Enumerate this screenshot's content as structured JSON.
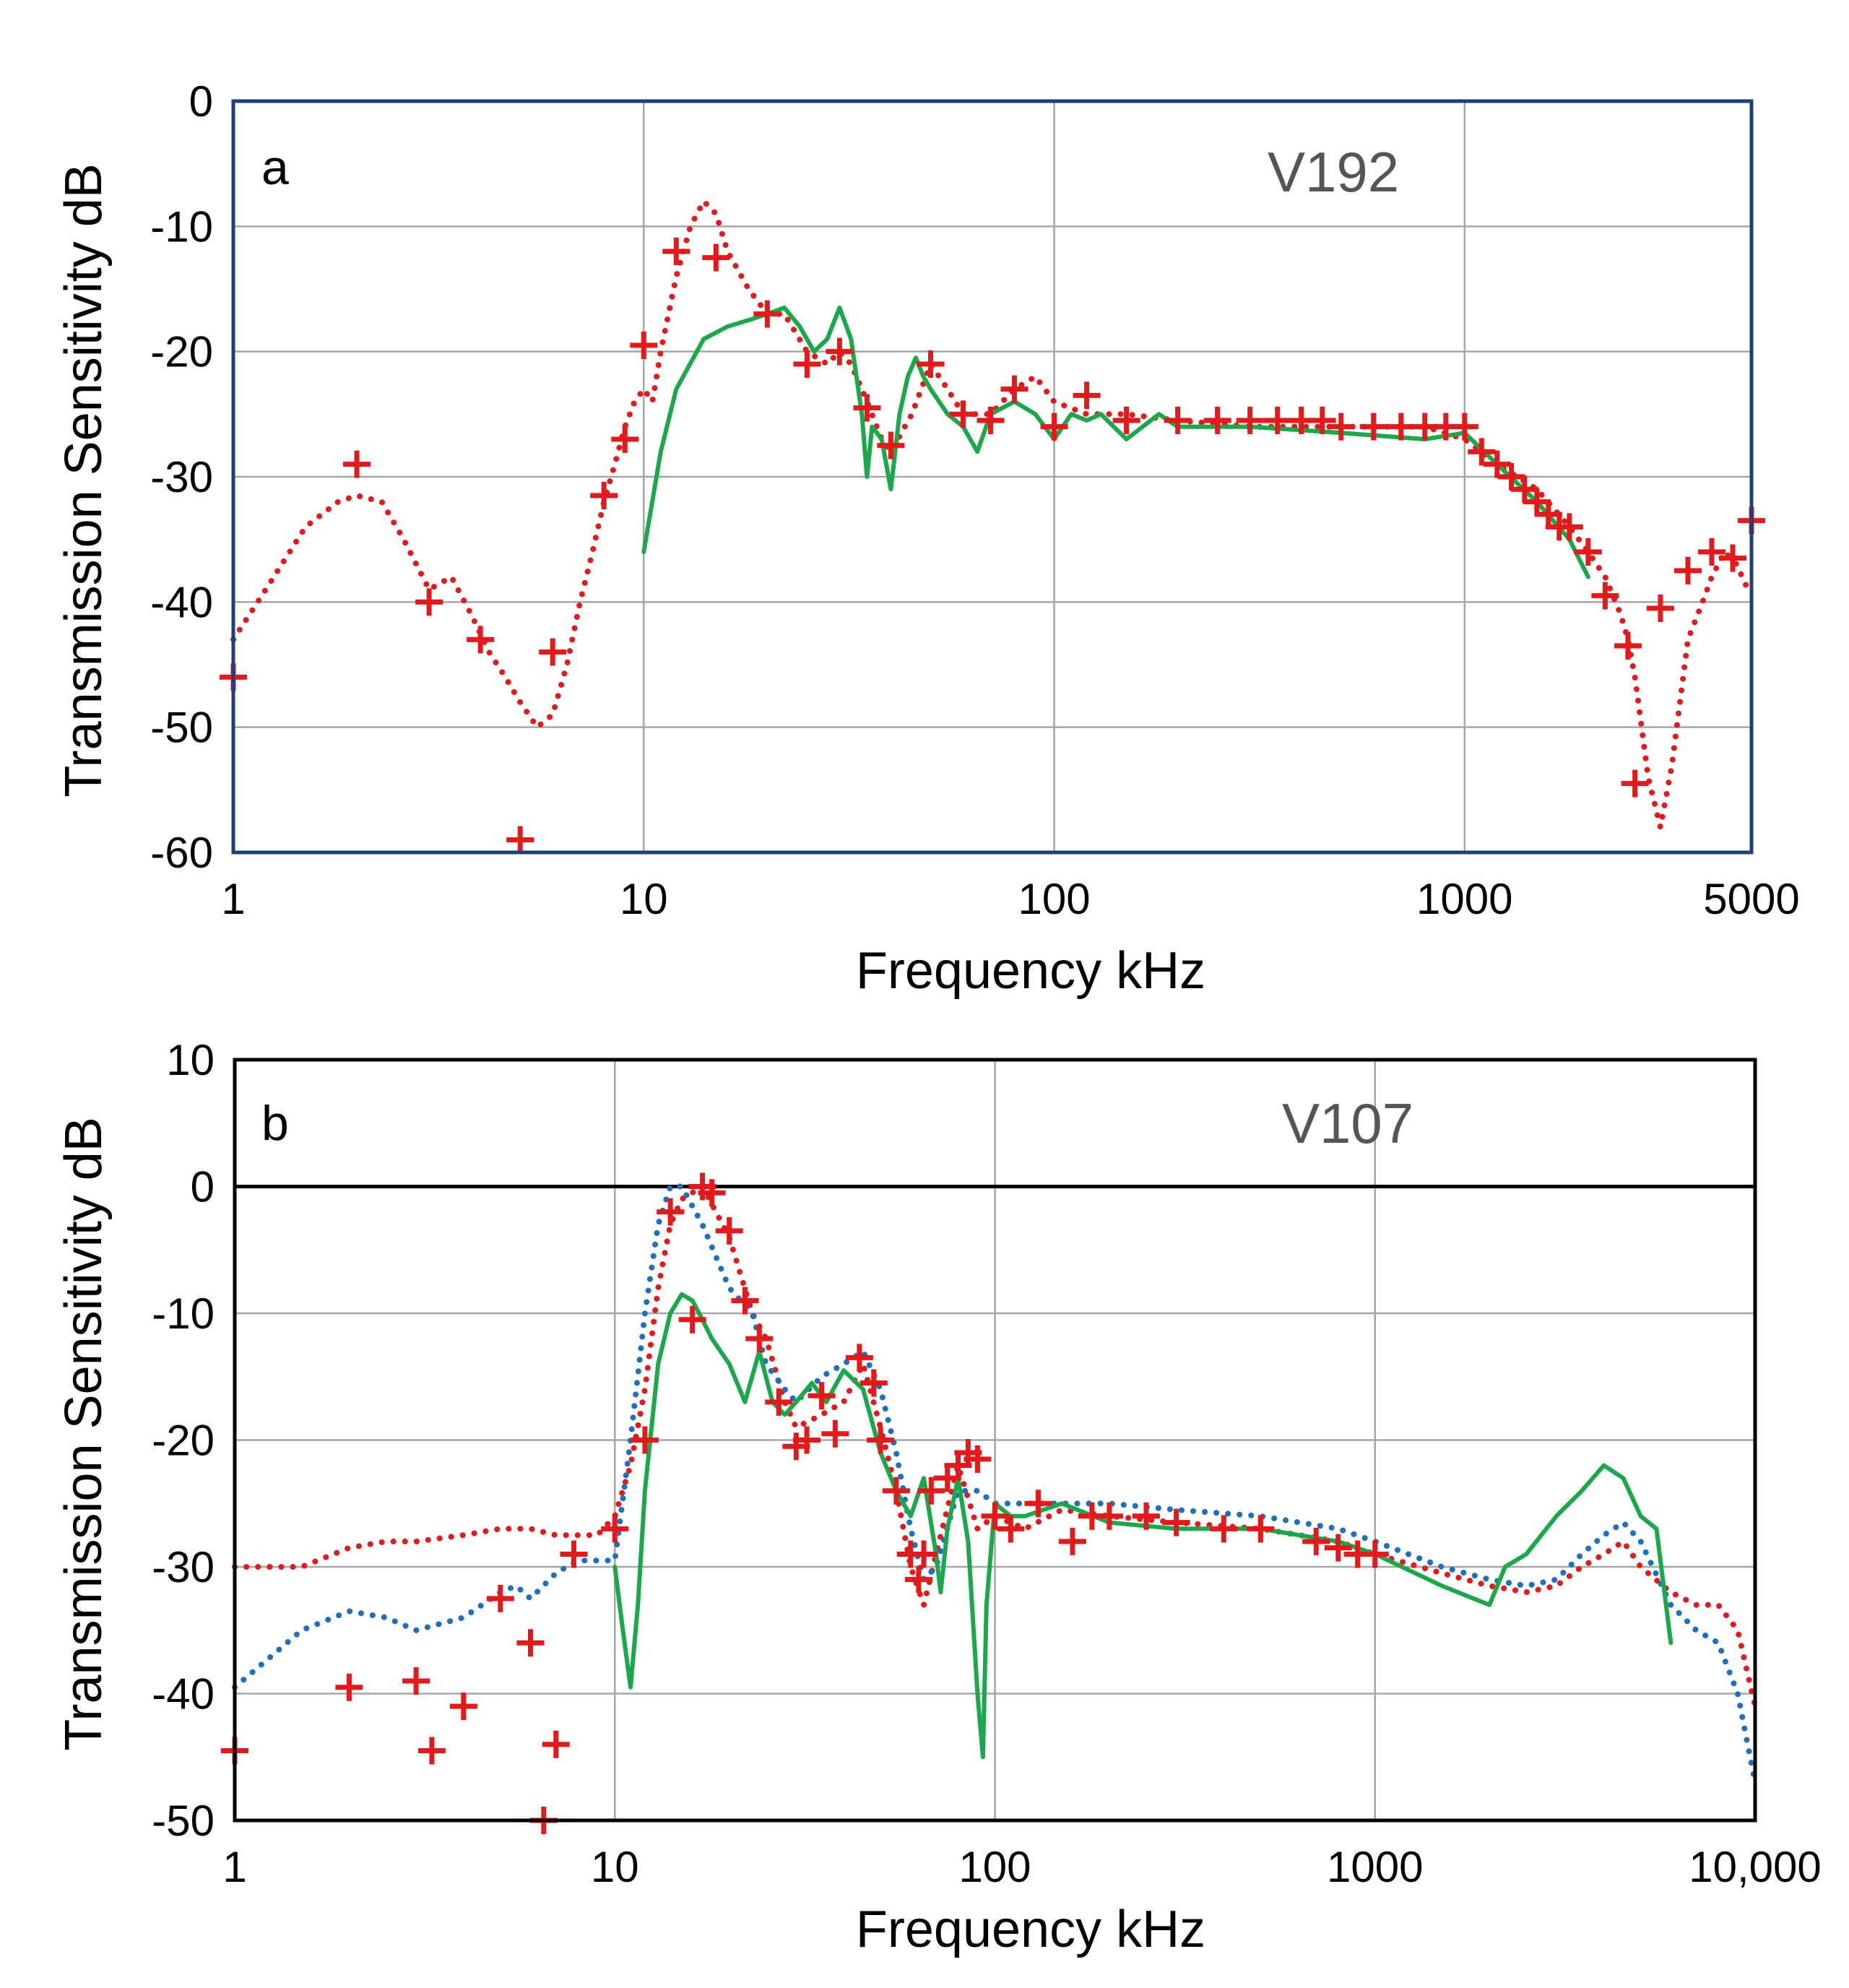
{
  "chart_data": [
    {
      "type": "line",
      "panel": "a",
      "dataset_label": "V192",
      "xlabel": "Frequency  kHz",
      "ylabel": "Transmission Sensitivity  dB",
      "xscale": "log",
      "xlim": [
        1,
        5000
      ],
      "ylim": [
        -60,
        0
      ],
      "xticks": [
        1,
        10,
        100,
        1000,
        5000
      ],
      "xtick_labels": [
        "1",
        "10",
        "100",
        "1000",
        "5000"
      ],
      "yticks": [
        0,
        -10,
        -20,
        -30,
        -40,
        -50,
        -60
      ],
      "ytick_labels": [
        "0",
        "-10",
        "-20",
        "-30",
        "-40",
        "-50",
        "-60"
      ],
      "grid": true,
      "zero_line": false,
      "frame_color": "#1f3f7a",
      "series": [
        {
          "name": "dotted",
          "style": "dotted",
          "color": "#e31a1c",
          "x": [
            1,
            1.2,
            1.5,
            1.8,
            2,
            2.3,
            2.6,
            3,
            3.4,
            3.8,
            4.2,
            4.6,
            5,
            5.5,
            6,
            6.5,
            7,
            7.5,
            8,
            8.5,
            9,
            9.5,
            10,
            10.5,
            11,
            12,
            13,
            14,
            15,
            16,
            18,
            20,
            22,
            25,
            28,
            30,
            32,
            35,
            38,
            40,
            45,
            50,
            55,
            60,
            70,
            80,
            90,
            100,
            120,
            150,
            200,
            300,
            500,
            700,
            800,
            1000,
            1200,
            1500,
            1800,
            2000,
            2200,
            2400,
            2500,
            2600,
            2700,
            2800,
            3000,
            3200,
            3500,
            3800,
            4000,
            4300,
            4600,
            4900
          ],
          "y": [
            -43,
            -39,
            -34,
            -32,
            -31.5,
            -32,
            -35,
            -39,
            -38,
            -41,
            -44,
            -46,
            -48,
            -50,
            -49,
            -45,
            -40,
            -36,
            -32,
            -29,
            -26,
            -24,
            -23,
            -24,
            -20,
            -14,
            -10,
            -8,
            -9,
            -12,
            -15,
            -17,
            -17,
            -20,
            -21,
            -20,
            -21,
            -24,
            -27,
            -28,
            -25,
            -21,
            -23,
            -25,
            -25,
            -23,
            -22,
            -24,
            -25,
            -25,
            -25.5,
            -26,
            -26,
            -26,
            -26,
            -27,
            -29,
            -31,
            -34,
            -36,
            -38,
            -41,
            -43,
            -46,
            -50,
            -54,
            -58,
            -53,
            -43,
            -40,
            -38,
            -36,
            -37,
            -39
          ]
        },
        {
          "name": "solid",
          "style": "solid",
          "color": "#1aa84a",
          "x": [
            10,
            11,
            12,
            14,
            16,
            18,
            20,
            22,
            24,
            26,
            28,
            30,
            32,
            34,
            35,
            36,
            38,
            40,
            42,
            44,
            46,
            48,
            50,
            55,
            60,
            65,
            70,
            80,
            90,
            100,
            110,
            120,
            130,
            150,
            180,
            200,
            300,
            500,
            800,
            1000,
            1200,
            1500,
            1800,
            2000
          ],
          "y": [
            -36,
            -28,
            -23,
            -19,
            -18,
            -17.5,
            -17,
            -16.5,
            -18,
            -20,
            -19,
            -16.5,
            -19,
            -25,
            -30,
            -26,
            -27,
            -31,
            -25,
            -22,
            -20.5,
            -22,
            -23,
            -25,
            -26,
            -28,
            -25,
            -24,
            -25,
            -27,
            -25,
            -25.5,
            -25,
            -27,
            -25,
            -26,
            -26,
            -26.5,
            -27,
            -26.5,
            -29,
            -32,
            -35,
            -38
          ]
        },
        {
          "name": "markers",
          "style": "plus",
          "color": "#e31a1c",
          "x": [
            1,
            2,
            3,
            4,
            5,
            6,
            8,
            9,
            10,
            12,
            15,
            20,
            25,
            30,
            35,
            40,
            50,
            60,
            70,
            80,
            100,
            120,
            150,
            200,
            250,
            300,
            350,
            400,
            450,
            500,
            600,
            700,
            800,
            900,
            1000,
            1100,
            1200,
            1300,
            1400,
            1500,
            1600,
            1700,
            1800,
            2000,
            2200,
            2500,
            2600,
            3000,
            3500,
            4000,
            4500,
            5000
          ],
          "y": [
            -46,
            -29,
            -40,
            -43,
            -59,
            -44,
            -31.5,
            -27,
            -19.5,
            -12,
            -12.5,
            -17,
            -21,
            -20,
            -24.5,
            -27.5,
            -21,
            -25,
            -25.5,
            -23,
            -26,
            -23.5,
            -25.5,
            -25.5,
            -25.5,
            -25.5,
            -25.5,
            -25.5,
            -25.5,
            -26,
            -26,
            -26,
            -26,
            -26,
            -26,
            -28,
            -29,
            -30,
            -31,
            -32,
            -33,
            -34,
            -34,
            -36,
            -39.5,
            -43.5,
            -54.5,
            -40.5,
            -37.5,
            -36,
            -36.5,
            -33.5
          ]
        }
      ]
    },
    {
      "type": "line",
      "panel": "b",
      "dataset_label": "V107",
      "xlabel": "Frequency  kHz",
      "ylabel": "Transmission Sensitivity  dB",
      "xscale": "log",
      "xlim": [
        1,
        10000
      ],
      "ylim": [
        -50,
        10
      ],
      "xticks": [
        1,
        10,
        100,
        1000,
        10000
      ],
      "xtick_labels": [
        "1",
        "10",
        "100",
        "1000",
        "10,000"
      ],
      "yticks": [
        10,
        0,
        -10,
        -20,
        -30,
        -40,
        -50
      ],
      "ytick_labels": [
        "10",
        "0",
        "-10",
        "-20",
        "-30",
        "-40",
        "-50"
      ],
      "grid": true,
      "zero_line": true,
      "frame_color": "#000000",
      "series": [
        {
          "name": "red dotted",
          "style": "dotted",
          "color": "#e31a1c",
          "x": [
            1,
            1.5,
            2,
            2.5,
            3,
            4,
            5,
            6,
            7,
            8,
            9,
            10,
            11,
            12,
            13,
            14,
            15,
            17,
            20,
            23,
            25,
            28,
            30,
            35,
            40,
            45,
            50,
            55,
            60,
            65,
            70,
            80,
            90,
            100,
            120,
            150,
            200,
            300,
            500,
            800,
            1000,
            1500,
            2000,
            2500,
            3000,
            3500,
            4000,
            4500,
            5000,
            6000,
            7000,
            8000,
            9000,
            10000
          ],
          "y": [
            -30,
            -30,
            -28.5,
            -28,
            -28,
            -27.5,
            -27,
            -27,
            -27.5,
            -27.5,
            -27.5,
            -26,
            -22,
            -16,
            -8,
            -3,
            -1,
            0,
            -4,
            -10,
            -12,
            -17,
            -19,
            -18,
            -17,
            -14,
            -19,
            -24,
            -30,
            -33,
            -29,
            -22,
            -27,
            -26,
            -27,
            -25.5,
            -26,
            -26.5,
            -27,
            -28,
            -29,
            -30.5,
            -31.5,
            -32,
            -31.5,
            -30,
            -29,
            -28,
            -30,
            -32,
            -33,
            -33,
            -35,
            -41
          ]
        },
        {
          "name": "blue dotted",
          "style": "dotted",
          "color": "#1f6fbf",
          "x": [
            1,
            1.5,
            2,
            2.5,
            3,
            4,
            5,
            5.5,
            6,
            7,
            8,
            9,
            10,
            11,
            12,
            13,
            14,
            15,
            17,
            20,
            23,
            25,
            28,
            30,
            35,
            40,
            45,
            50,
            55,
            60,
            65,
            70,
            80,
            90,
            100,
            150,
            200,
            300,
            500,
            800,
            1000,
            1500,
            2000,
            2500,
            3000,
            3500,
            4000,
            4500,
            5000,
            6000,
            7000,
            8000,
            9000,
            10000
          ],
          "y": [
            -39.5,
            -35,
            -33.5,
            -34,
            -35,
            -34,
            -32,
            -31.5,
            -32.5,
            -30.5,
            -29.5,
            -29.5,
            -29.5,
            -20,
            -10,
            -3,
            0,
            0,
            -3,
            -8,
            -10,
            -14,
            -16,
            -17,
            -15,
            -14,
            -13,
            -16,
            -21,
            -27,
            -31,
            -30,
            -24,
            -24,
            -25,
            -25,
            -25,
            -25.5,
            -26,
            -27,
            -28,
            -30,
            -31,
            -31.5,
            -31,
            -29,
            -27.5,
            -26.5,
            -28,
            -33,
            -35,
            -36,
            -40,
            -47
          ]
        },
        {
          "name": "green solid",
          "style": "solid",
          "color": "#1aa84a",
          "x": [
            10,
            10.5,
            11,
            11.5,
            12,
            13,
            14,
            15,
            16,
            17,
            18,
            20,
            22,
            24,
            26,
            28,
            30,
            33,
            36,
            40,
            45,
            50,
            55,
            60,
            65,
            70,
            72,
            75,
            80,
            85,
            90,
            93,
            95,
            100,
            110,
            120,
            150,
            200,
            300,
            500,
            800,
            1000,
            1500,
            2000,
            2200,
            2500,
            3000,
            3500,
            4000,
            4500,
            5000,
            5500,
            6000
          ],
          "y": [
            -30,
            -35,
            -39.5,
            -33,
            -24,
            -14,
            -10,
            -8.5,
            -9,
            -10.5,
            -12,
            -14,
            -17,
            -13,
            -17,
            -18,
            -17,
            -15.5,
            -17,
            -14.5,
            -16,
            -21,
            -24,
            -26,
            -23,
            -29,
            -32,
            -27,
            -23,
            -28,
            -40,
            -45,
            -33,
            -25,
            -26,
            -26,
            -25,
            -26.5,
            -27,
            -27,
            -28,
            -29,
            -31.5,
            -33,
            -30,
            -29,
            -26,
            -24,
            -22,
            -23,
            -26,
            -27,
            -36
          ]
        },
        {
          "name": "markers",
          "style": "plus",
          "color": "#e31a1c",
          "x": [
            1,
            2,
            3,
            3.3,
            4,
            5,
            6,
            6.5,
            7,
            7.8,
            10,
            12,
            14,
            16,
            17,
            18,
            20,
            22,
            24,
            27,
            30,
            32,
            35,
            38,
            44,
            48,
            50,
            55,
            60,
            63,
            65,
            68,
            75,
            80,
            85,
            90,
            100,
            110,
            130,
            160,
            180,
            200,
            250,
            300,
            400,
            500,
            700,
            800,
            900,
            1000
          ],
          "y": [
            -44.5,
            -39.5,
            -39,
            -44.5,
            -41,
            -32.5,
            -36,
            -50,
            -44,
            -29,
            -27,
            -20,
            -2,
            -10.5,
            0,
            -0.5,
            -3.5,
            -9,
            -12,
            -17,
            -20.5,
            -20,
            -16.5,
            -19.5,
            -13.5,
            -15.5,
            -20,
            -24,
            -29,
            -31,
            -29,
            -24,
            -23,
            -22,
            -21,
            -21.5,
            -26,
            -27,
            -25,
            -28,
            -26,
            -26,
            -26,
            -26.5,
            -27,
            -27,
            -28,
            -28.5,
            -29,
            -29
          ]
        }
      ]
    }
  ]
}
